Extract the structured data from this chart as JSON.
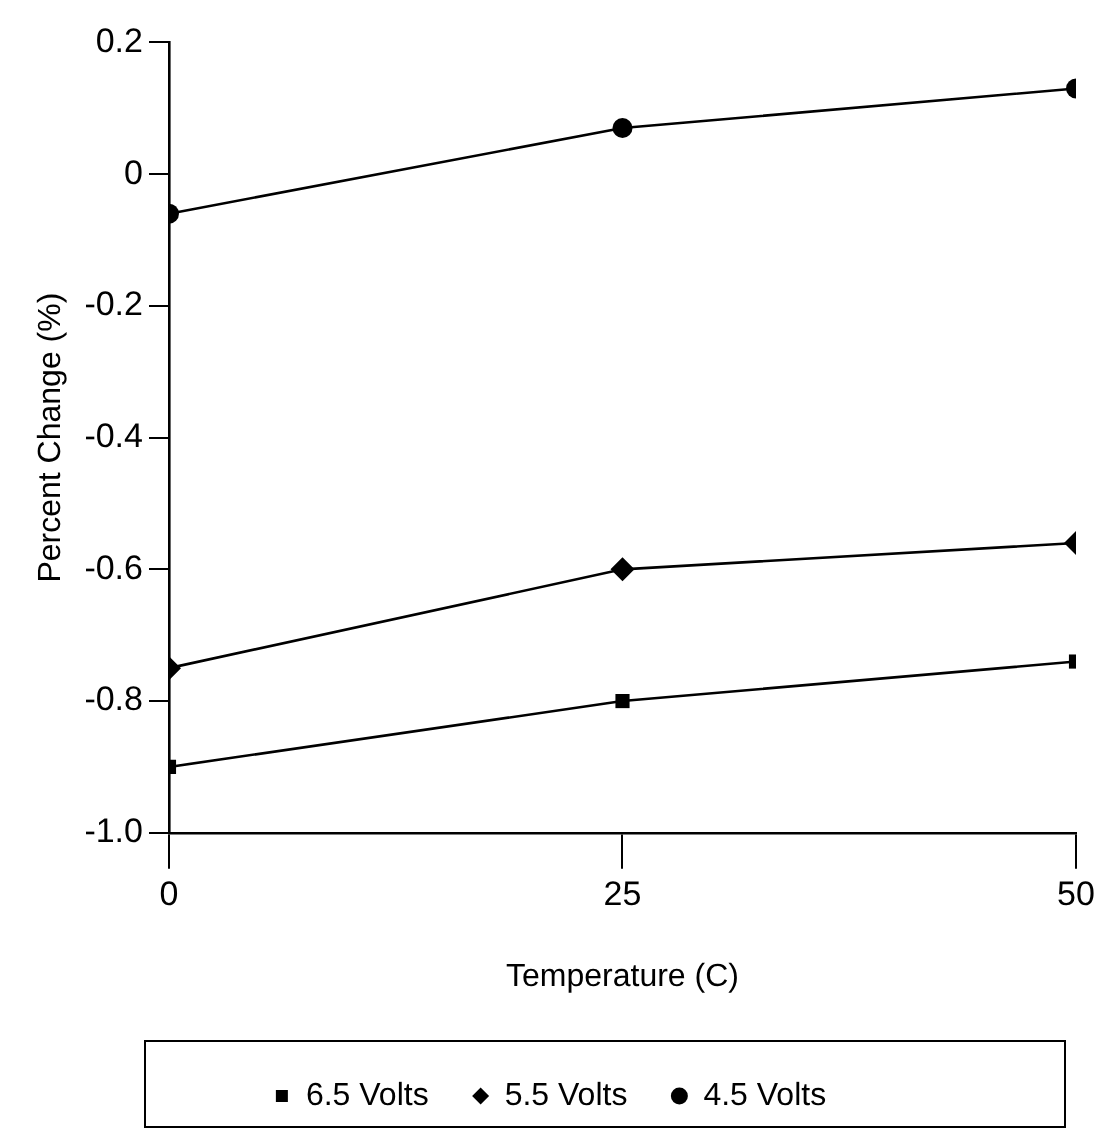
{
  "chart_data": {
    "type": "line",
    "xlabel": "Temperature (C)",
    "ylabel": "Percent Change (%)",
    "x": [
      0,
      25,
      50
    ],
    "xlim": [
      0,
      50
    ],
    "xticks": [
      0,
      25,
      50
    ],
    "ylim": [
      -1.0,
      0.2
    ],
    "yticks": [
      {
        "value": -1.0,
        "label": "-1.0"
      },
      {
        "value": -0.8,
        "label": "-0.8"
      },
      {
        "value": -0.6,
        "label": "-0.6"
      },
      {
        "value": -0.4,
        "label": "-0.4"
      },
      {
        "value": -0.2,
        "label": "-0.2"
      },
      0,
      0.2
    ],
    "grid": false,
    "legend": "bottom",
    "line_style": "solid",
    "series": [
      {
        "name": "6.5 Volts",
        "color": "#000000",
        "marker": "square",
        "values": [
          -0.9,
          -0.8,
          -0.74
        ]
      },
      {
        "name": "5.5 Volts",
        "color": "#000000",
        "marker": "diamond",
        "values": [
          -0.75,
          -0.6,
          -0.56
        ]
      },
      {
        "name": "4.5 Volts",
        "color": "#000000",
        "marker": "circle",
        "values": [
          -0.06,
          0.07,
          0.13
        ]
      }
    ]
  }
}
